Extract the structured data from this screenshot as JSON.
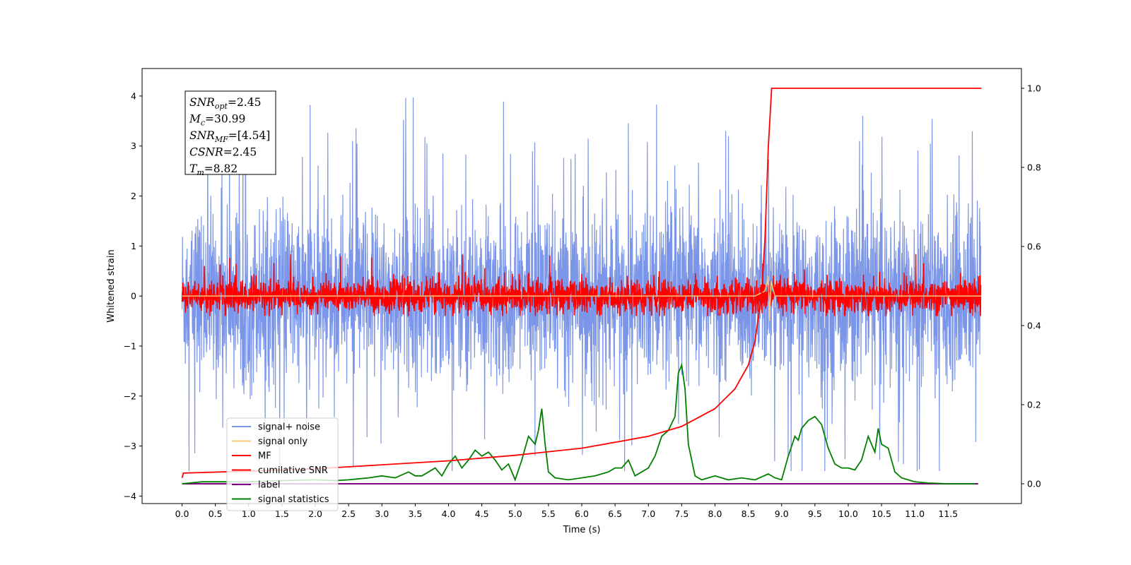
{
  "chart_data": {
    "type": "line",
    "title": "",
    "xlabel": "Time (s)",
    "ylabel": "Whitened strain",
    "y2label": "",
    "xlim": [
      -0.6,
      12.6
    ],
    "ylim": [
      -4.15,
      4.55
    ],
    "y2lim": [
      -0.05,
      1.05
    ],
    "xticks": [
      0.0,
      0.5,
      1.0,
      1.5,
      2.0,
      2.5,
      3.0,
      3.5,
      4.0,
      4.5,
      5.0,
      5.5,
      6.0,
      6.5,
      7.0,
      7.5,
      8.0,
      8.5,
      9.0,
      9.5,
      10.0,
      10.5,
      11.0,
      11.5
    ],
    "xtick_labels": [
      "0.0",
      "0.5",
      "1.0",
      "1.5",
      "2.0",
      "2.5",
      "3.0",
      "3.5",
      "4.0",
      "4.5",
      "5.0",
      "5.5",
      "6.0",
      "6.5",
      "7.0",
      "7.5",
      "8.0",
      "8.5",
      "9.0",
      "9.5",
      "10.0",
      "10.5",
      "11.0",
      "11.5"
    ],
    "yticks": [
      -4,
      -3,
      -2,
      -1,
      0,
      1,
      2,
      3,
      4
    ],
    "ytick_labels": [
      "−4",
      "−3",
      "−2",
      "−1",
      "0",
      "1",
      "2",
      "3",
      "4"
    ],
    "y2ticks": [
      0.0,
      0.2,
      0.4,
      0.6,
      0.8,
      1.0
    ],
    "y2tick_labels": [
      "0.0",
      "0.2",
      "0.4",
      "0.6",
      "0.8",
      "1.0"
    ],
    "grid": false,
    "legend_position": "lower-left",
    "annotation_lines": [
      "SNR_opt=2.45",
      "M_c=30.99",
      "SNR_MF=[4.54]",
      "CSNR=2.45",
      "T_m=8.82"
    ],
    "series": [
      {
        "name": "signal+ noise",
        "color": "#7b96e8",
        "axis": "left",
        "style": "dense noise spanning about -3.5 to 4.2, mostly within -2.2 to 2.5",
        "x_range": [
          0.0,
          11.99
        ]
      },
      {
        "name": "signal only",
        "color": "#f5c97a",
        "axis": "left",
        "x": [
          0.0,
          8.6,
          8.75,
          8.8,
          8.82,
          8.84,
          8.9,
          12.0
        ],
        "y": [
          0.0,
          0.0,
          0.1,
          0.4,
          -0.5,
          0.3,
          0.0,
          0.0
        ]
      },
      {
        "name": "MF",
        "color": "#ff0000",
        "axis": "left",
        "style": "dense noise spanning about -0.4 to 0.9",
        "x_range": [
          0.0,
          11.99
        ]
      },
      {
        "name": "cumilative SNR",
        "color": "#ff0000",
        "axis": "right",
        "x": [
          0.0,
          0.02,
          1.0,
          2.0,
          3.0,
          4.0,
          5.0,
          6.0,
          7.0,
          7.5,
          8.0,
          8.3,
          8.5,
          8.6,
          8.7,
          8.75,
          8.8,
          8.85,
          12.0
        ],
        "y": [
          0.015,
          0.027,
          0.032,
          0.038,
          0.048,
          0.058,
          0.072,
          0.09,
          0.12,
          0.145,
          0.19,
          0.24,
          0.3,
          0.36,
          0.48,
          0.62,
          0.85,
          1.0,
          1.0
        ]
      },
      {
        "name": "label",
        "color": "#800080",
        "axis": "right",
        "x": [
          0.0,
          11.95
        ],
        "y": [
          0.0,
          0.0
        ]
      },
      {
        "name": "signal statistics",
        "color": "#008000",
        "axis": "right",
        "x": [
          0.0,
          0.3,
          0.5,
          1.0,
          1.5,
          2.0,
          2.3,
          2.5,
          2.8,
          3.0,
          3.2,
          3.4,
          3.5,
          3.6,
          3.8,
          3.9,
          4.0,
          4.1,
          4.2,
          4.3,
          4.4,
          4.5,
          4.6,
          4.7,
          4.8,
          4.9,
          5.0,
          5.1,
          5.2,
          5.3,
          5.35,
          5.4,
          5.45,
          5.5,
          5.6,
          5.8,
          6.0,
          6.2,
          6.3,
          6.4,
          6.5,
          6.6,
          6.7,
          6.8,
          6.9,
          7.0,
          7.1,
          7.2,
          7.3,
          7.4,
          7.45,
          7.5,
          7.55,
          7.6,
          7.7,
          7.8,
          7.9,
          8.0,
          8.2,
          8.4,
          8.6,
          8.8,
          8.9,
          9.0,
          9.1,
          9.2,
          9.25,
          9.3,
          9.4,
          9.5,
          9.6,
          9.7,
          9.8,
          9.9,
          10.0,
          10.1,
          10.2,
          10.3,
          10.35,
          10.4,
          10.45,
          10.5,
          10.6,
          10.7,
          10.8,
          10.9,
          11.0,
          11.2,
          11.5,
          11.9
        ],
        "y": [
          0.0,
          0.005,
          0.005,
          0.005,
          0.008,
          0.01,
          0.008,
          0.01,
          0.015,
          0.02,
          0.015,
          0.03,
          0.02,
          0.02,
          0.04,
          0.02,
          0.05,
          0.07,
          0.04,
          0.06,
          0.085,
          0.07,
          0.08,
          0.06,
          0.035,
          0.05,
          0.01,
          0.06,
          0.12,
          0.1,
          0.135,
          0.19,
          0.1,
          0.03,
          0.015,
          0.01,
          0.015,
          0.02,
          0.025,
          0.03,
          0.04,
          0.04,
          0.06,
          0.02,
          0.03,
          0.04,
          0.07,
          0.12,
          0.135,
          0.17,
          0.28,
          0.3,
          0.24,
          0.1,
          0.02,
          0.01,
          0.015,
          0.02,
          0.01,
          0.015,
          0.01,
          0.025,
          0.015,
          0.01,
          0.07,
          0.12,
          0.11,
          0.14,
          0.16,
          0.17,
          0.15,
          0.09,
          0.05,
          0.04,
          0.04,
          0.035,
          0.06,
          0.12,
          0.1,
          0.08,
          0.14,
          0.1,
          0.09,
          0.03,
          0.015,
          0.01,
          0.005,
          0.002,
          0.0,
          0.0
        ]
      }
    ]
  }
}
